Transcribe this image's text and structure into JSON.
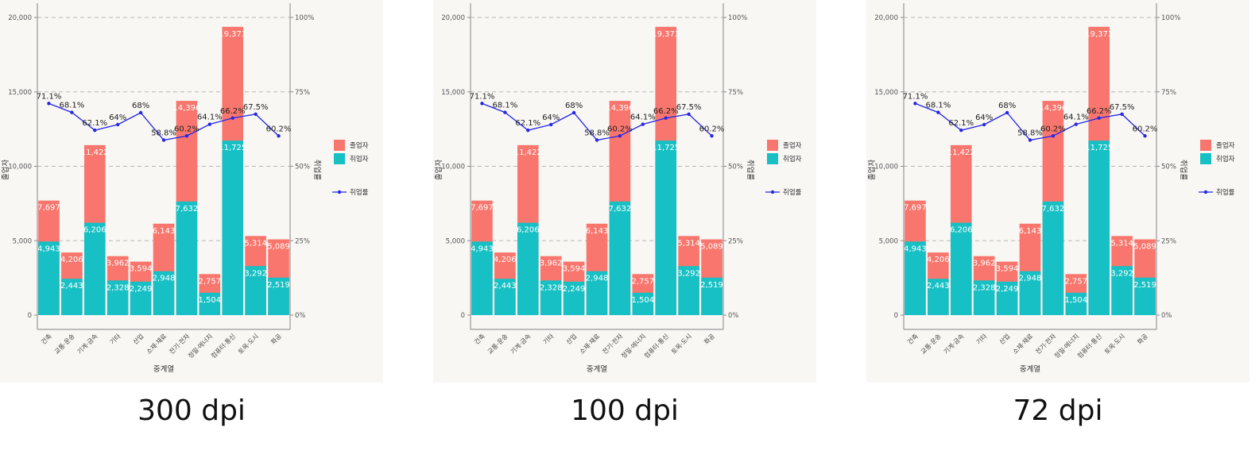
{
  "colors": {
    "employed": "#17c0c4",
    "graduates": "#f8766d",
    "rate_line": "#2626e8",
    "panel_bg": "#f8f7f4",
    "grid": "#b8b8b8"
  },
  "panels": [
    {
      "caption": "300 dpi"
    },
    {
      "caption": "100 dpi"
    },
    {
      "caption": "72 dpi"
    }
  ],
  "chart_data": {
    "type": "bar",
    "stacked": true,
    "categories": [
      "건축",
      "교통·운송",
      "기계·금속",
      "기타",
      "산업",
      "소재·재료",
      "전기·전자",
      "정밀·에너지",
      "컴퓨터·통신",
      "토목·도시",
      "화공"
    ],
    "series": [
      {
        "name": "취업자",
        "values": [
          4943,
          2443,
          6206,
          2328,
          2249,
          2948,
          7632,
          1504,
          11725,
          3292,
          2519
        ],
        "color": "#17c0c4"
      },
      {
        "name": "졸업자",
        "values": [
          7697,
          4206,
          11422,
          3962,
          3594,
          6143,
          14396,
          2757,
          19373,
          5314,
          5089
        ],
        "color": "#f8766d",
        "note_total": true
      }
    ],
    "line": {
      "name": "취업률",
      "values": [
        71.1,
        68.1,
        62.1,
        64,
        68,
        58.8,
        60.2,
        64.1,
        66.2,
        67.5,
        60.2
      ],
      "labels": [
        "71.1%",
        "68.1%",
        "62.1%",
        "64%",
        "68%",
        "58.8%",
        "60.2%",
        "64.1%",
        "66.2%",
        "67.5%",
        "60.2%"
      ],
      "color": "#2626e8"
    },
    "bar_labels_bottom": [
      "4,943",
      "2,443",
      "6,206",
      "2,328",
      "2,249",
      "2,948",
      "7,632",
      "1,504",
      "11,725",
      "3,292",
      "2,519"
    ],
    "bar_labels_top": [
      "7,697",
      "4,206",
      "11,422",
      "3,962",
      "3,594",
      "6,143",
      "14,396",
      "2,757",
      "19,373",
      "5,314",
      "5,089"
    ],
    "xlabel": "중계열",
    "ylabel_left": "졸업자",
    "ylabel_right": "취업률",
    "ylim": [
      0,
      20000
    ],
    "y2lim": [
      0,
      100
    ],
    "yticks": [
      "0",
      "5,000",
      "10,000",
      "15,000",
      "20,000"
    ],
    "y2ticks": [
      "0%",
      "25%",
      "50%",
      "75%",
      "100%"
    ],
    "legend": {
      "bars": [
        "졸업자",
        "취업자"
      ],
      "line": "취업률",
      "placement": "right"
    },
    "grid": true
  }
}
